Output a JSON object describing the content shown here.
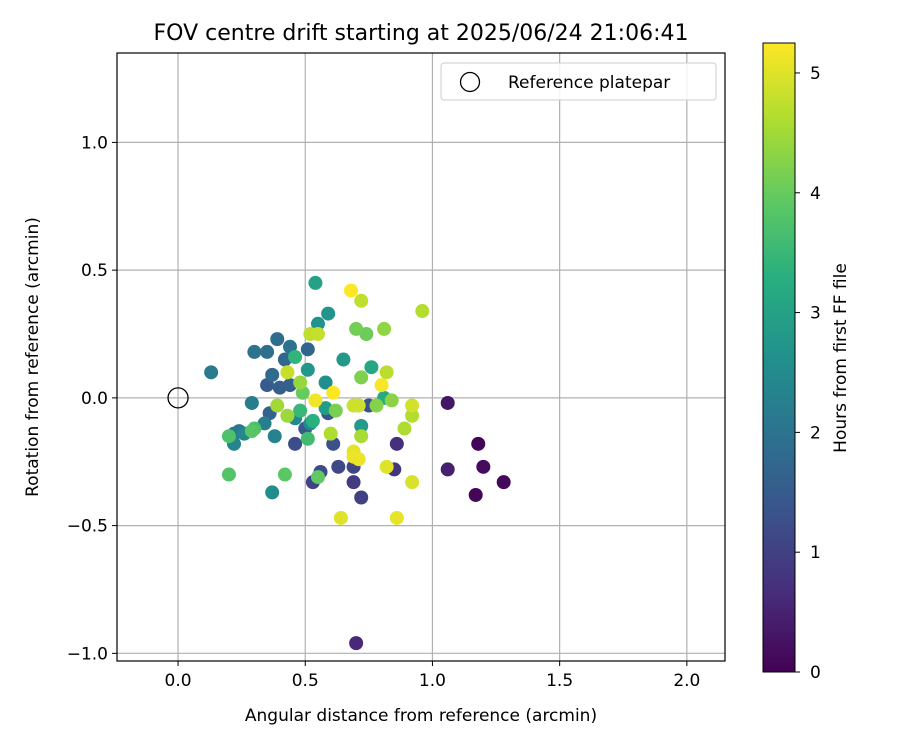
{
  "chart_data": {
    "type": "scatter",
    "title": "FOV centre drift starting at 2025/06/24 21:06:41",
    "xlabel": "Angular distance from reference (arcmin)",
    "ylabel": "Rotation from reference (arcmin)",
    "xlim": [
      -0.24,
      2.15
    ],
    "ylim": [
      -1.03,
      1.35
    ],
    "x_ticks": [
      0.0,
      0.5,
      1.0,
      1.5,
      2.0
    ],
    "x_tick_labels": [
      "0.0",
      "0.5",
      "1.0",
      "1.5",
      "2.0"
    ],
    "y_ticks": [
      -1.0,
      -0.5,
      0.0,
      0.5,
      1.0
    ],
    "y_tick_labels": [
      "−1.0",
      "−0.5",
      "0.0",
      "0.5",
      "1.0"
    ],
    "grid": true,
    "legend": {
      "position": "top-right",
      "entries": [
        {
          "label": "Reference platepar",
          "marker": "open-circle"
        }
      ]
    },
    "reference_point": {
      "x": 0.0,
      "y": 0.0
    },
    "colorbar": {
      "label": "Hours from first FF file",
      "colormap": "viridis",
      "range": [
        0,
        5.25
      ],
      "ticks": [
        0,
        1,
        2,
        3,
        4,
        5
      ],
      "tick_labels": [
        "0",
        "1",
        "2",
        "3",
        "4",
        "5"
      ]
    },
    "points": [
      {
        "x": 1.18,
        "y": -0.18,
        "c": 0.05
      },
      {
        "x": 1.17,
        "y": -0.38,
        "c": 0.08
      },
      {
        "x": 1.28,
        "y": -0.33,
        "c": 0.1
      },
      {
        "x": 1.2,
        "y": -0.27,
        "c": 0.15
      },
      {
        "x": 1.06,
        "y": -0.02,
        "c": 0.3
      },
      {
        "x": 1.06,
        "y": -0.28,
        "c": 0.45
      },
      {
        "x": 0.7,
        "y": -0.96,
        "c": 0.6
      },
      {
        "x": 0.86,
        "y": -0.18,
        "c": 0.7
      },
      {
        "x": 0.85,
        "y": -0.28,
        "c": 0.8
      },
      {
        "x": 0.69,
        "y": -0.33,
        "c": 0.9
      },
      {
        "x": 0.72,
        "y": -0.39,
        "c": 1.0
      },
      {
        "x": 0.53,
        "y": -0.33,
        "c": 1.05
      },
      {
        "x": 0.69,
        "y": -0.27,
        "c": 1.1
      },
      {
        "x": 0.63,
        "y": -0.27,
        "c": 1.15
      },
      {
        "x": 0.56,
        "y": -0.29,
        "c": 1.2
      },
      {
        "x": 0.46,
        "y": -0.18,
        "c": 1.25
      },
      {
        "x": 0.61,
        "y": -0.18,
        "c": 1.3
      },
      {
        "x": 0.75,
        "y": -0.03,
        "c": 1.35
      },
      {
        "x": 0.59,
        "y": -0.06,
        "c": 1.4
      },
      {
        "x": 0.5,
        "y": -0.12,
        "c": 1.45
      },
      {
        "x": 0.35,
        "y": 0.05,
        "c": 1.5
      },
      {
        "x": 0.4,
        "y": 0.04,
        "c": 1.55
      },
      {
        "x": 0.44,
        "y": 0.05,
        "c": 1.6
      },
      {
        "x": 0.36,
        "y": -0.06,
        "c": 1.65
      },
      {
        "x": 0.51,
        "y": 0.19,
        "c": 1.7
      },
      {
        "x": 0.42,
        "y": 0.15,
        "c": 1.75
      },
      {
        "x": 0.37,
        "y": 0.09,
        "c": 1.8
      },
      {
        "x": 0.39,
        "y": 0.23,
        "c": 1.85
      },
      {
        "x": 0.35,
        "y": 0.18,
        "c": 1.9
      },
      {
        "x": 0.44,
        "y": 0.2,
        "c": 1.95
      },
      {
        "x": 0.3,
        "y": 0.18,
        "c": 2.0
      },
      {
        "x": 0.22,
        "y": -0.14,
        "c": 2.05
      },
      {
        "x": 0.24,
        "y": -0.13,
        "c": 2.1
      },
      {
        "x": 0.13,
        "y": 0.1,
        "c": 2.15
      },
      {
        "x": 0.29,
        "y": -0.02,
        "c": 2.2
      },
      {
        "x": 0.34,
        "y": -0.1,
        "c": 2.25
      },
      {
        "x": 0.38,
        "y": -0.15,
        "c": 2.3
      },
      {
        "x": 0.22,
        "y": -0.18,
        "c": 2.35
      },
      {
        "x": 0.26,
        "y": -0.14,
        "c": 2.4
      },
      {
        "x": 0.46,
        "y": -0.08,
        "c": 2.45
      },
      {
        "x": 0.52,
        "y": -0.1,
        "c": 2.5
      },
      {
        "x": 0.37,
        "y": -0.37,
        "c": 2.55
      },
      {
        "x": 0.58,
        "y": 0.06,
        "c": 2.6
      },
      {
        "x": 0.55,
        "y": 0.29,
        "c": 2.65
      },
      {
        "x": 0.59,
        "y": 0.33,
        "c": 2.7
      },
      {
        "x": 0.51,
        "y": 0.11,
        "c": 2.75
      },
      {
        "x": 0.65,
        "y": 0.15,
        "c": 2.8
      },
      {
        "x": 0.72,
        "y": -0.11,
        "c": 2.85
      },
      {
        "x": 0.58,
        "y": -0.04,
        "c": 2.9
      },
      {
        "x": 0.54,
        "y": 0.45,
        "c": 3.0
      },
      {
        "x": 0.76,
        "y": 0.12,
        "c": 3.1
      },
      {
        "x": 0.81,
        "y": 0.0,
        "c": 3.2
      },
      {
        "x": 0.53,
        "y": -0.09,
        "c": 3.3
      },
      {
        "x": 0.46,
        "y": 0.16,
        "c": 3.4
      },
      {
        "x": 0.48,
        "y": -0.05,
        "c": 3.5
      },
      {
        "x": 0.51,
        "y": -0.16,
        "c": 3.6
      },
      {
        "x": 0.3,
        "y": -0.12,
        "c": 3.7
      },
      {
        "x": 0.2,
        "y": -0.15,
        "c": 3.75
      },
      {
        "x": 0.2,
        "y": -0.3,
        "c": 3.8
      },
      {
        "x": 0.29,
        "y": -0.13,
        "c": 3.85
      },
      {
        "x": 0.42,
        "y": -0.3,
        "c": 3.9
      },
      {
        "x": 0.55,
        "y": -0.31,
        "c": 3.95
      },
      {
        "x": 0.49,
        "y": 0.02,
        "c": 4.0
      },
      {
        "x": 0.74,
        "y": 0.25,
        "c": 4.05
      },
      {
        "x": 0.7,
        "y": 0.27,
        "c": 4.1
      },
      {
        "x": 0.62,
        "y": -0.05,
        "c": 4.15
      },
      {
        "x": 0.72,
        "y": 0.08,
        "c": 4.2
      },
      {
        "x": 0.78,
        "y": -0.03,
        "c": 4.25
      },
      {
        "x": 0.84,
        "y": -0.01,
        "c": 4.3
      },
      {
        "x": 0.81,
        "y": 0.27,
        "c": 4.35
      },
      {
        "x": 0.48,
        "y": 0.06,
        "c": 4.4
      },
      {
        "x": 0.43,
        "y": -0.07,
        "c": 4.45
      },
      {
        "x": 0.39,
        "y": -0.03,
        "c": 4.5
      },
      {
        "x": 0.72,
        "y": -0.15,
        "c": 4.55
      },
      {
        "x": 0.6,
        "y": -0.14,
        "c": 4.6
      },
      {
        "x": 0.89,
        "y": -0.12,
        "c": 4.6
      },
      {
        "x": 0.92,
        "y": -0.07,
        "c": 4.65
      },
      {
        "x": 0.96,
        "y": 0.34,
        "c": 4.65
      },
      {
        "x": 0.82,
        "y": 0.1,
        "c": 4.7
      },
      {
        "x": 0.72,
        "y": 0.38,
        "c": 4.75
      },
      {
        "x": 0.52,
        "y": 0.25,
        "c": 4.75
      },
      {
        "x": 0.55,
        "y": 0.25,
        "c": 4.8
      },
      {
        "x": 0.43,
        "y": 0.1,
        "c": 4.8
      },
      {
        "x": 0.69,
        "y": -0.03,
        "c": 4.85
      },
      {
        "x": 0.71,
        "y": -0.03,
        "c": 4.85
      },
      {
        "x": 0.92,
        "y": -0.03,
        "c": 4.9
      },
      {
        "x": 0.92,
        "y": -0.33,
        "c": 4.95
      },
      {
        "x": 0.82,
        "y": -0.27,
        "c": 5.0
      },
      {
        "x": 0.64,
        "y": -0.47,
        "c": 5.0
      },
      {
        "x": 0.86,
        "y": -0.47,
        "c": 5.05
      },
      {
        "x": 0.69,
        "y": -0.21,
        "c": 5.05
      },
      {
        "x": 0.71,
        "y": -0.24,
        "c": 5.1
      },
      {
        "x": 0.69,
        "y": -0.23,
        "c": 5.1
      },
      {
        "x": 0.54,
        "y": -0.01,
        "c": 5.15
      },
      {
        "x": 0.8,
        "y": 0.05,
        "c": 5.2
      },
      {
        "x": 0.61,
        "y": 0.02,
        "c": 5.25
      },
      {
        "x": 0.68,
        "y": 0.42,
        "c": 5.25
      }
    ]
  }
}
